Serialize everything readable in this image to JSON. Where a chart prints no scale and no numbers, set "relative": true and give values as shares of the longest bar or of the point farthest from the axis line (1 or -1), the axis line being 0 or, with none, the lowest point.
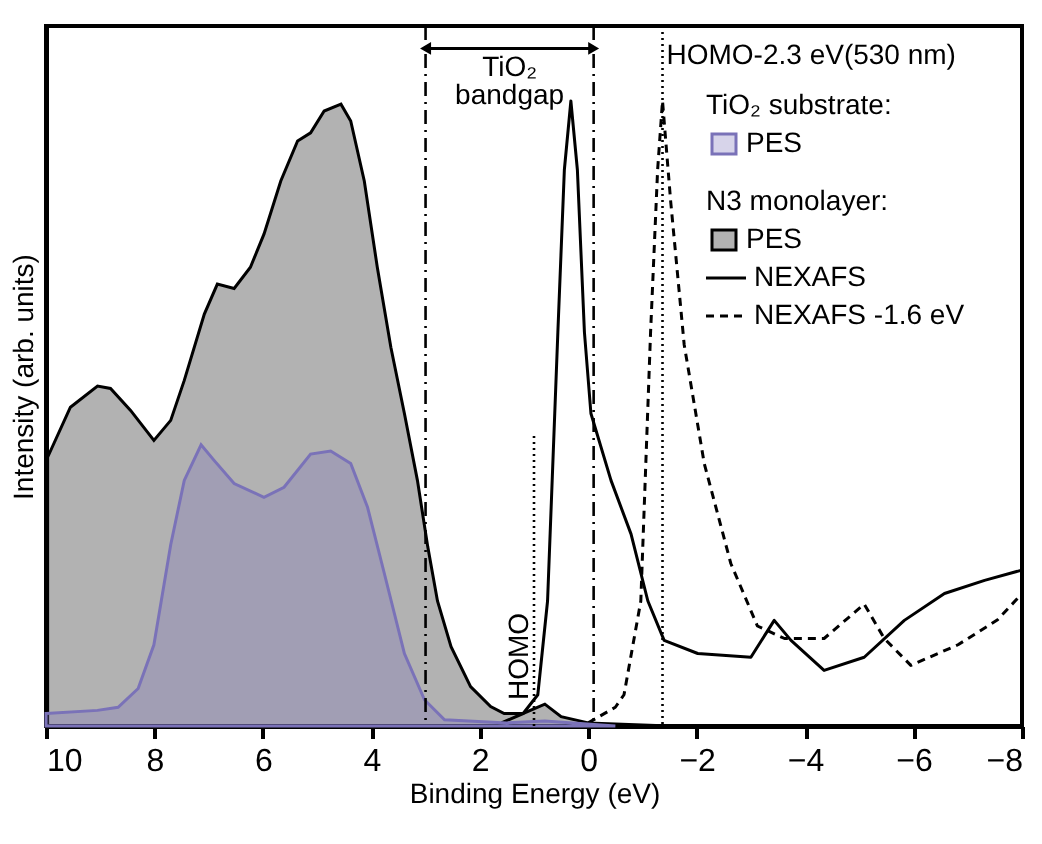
{
  "chart_data": {
    "type": "area",
    "relative": true,
    "xlabel": "Binding Energy (eV)",
    "ylabel": "Intensity (arb. units)",
    "xlim": [
      10,
      -8
    ],
    "xticks": [
      10,
      8,
      6,
      4,
      2,
      0,
      -2,
      -4,
      -6,
      -8
    ],
    "grid": false,
    "legend": "top right",
    "annotations": [
      "TiO₂ bandgap",
      "TiO₂ substrate:",
      "N3 monolayer:"
    ],
    "ref_lines": [
      {
        "axis": "x",
        "value": 3.0,
        "label": null,
        "line_style": "dashdot"
      },
      {
        "axis": "x",
        "value": -0.1,
        "label": null,
        "line_style": "dashdot"
      },
      {
        "axis": "x",
        "value": 1.0,
        "label": "HOMO",
        "line_style": "dotted"
      },
      {
        "axis": "x",
        "value": -1.37,
        "label": "HOMO-2.3 eV(530 nm)",
        "line_style": "dotted"
      }
    ],
    "series": [
      {
        "name": "PES",
        "color": "#7a72b8",
        "x": [
          10,
          9.05,
          8.67,
          8.3,
          8.01,
          7.7,
          7.45,
          7.14,
          6.9,
          6.53,
          5.98,
          5.61,
          5.12,
          4.75,
          4.38,
          4.07,
          3.76,
          3.39,
          3.02,
          2.65,
          1.5,
          0.8,
          -0.5
        ],
        "values": [
          0.02,
          0.025,
          0.03,
          0.06,
          0.13,
          0.29,
          0.393,
          0.45,
          0.425,
          0.388,
          0.366,
          0.382,
          0.435,
          0.44,
          0.42,
          0.35,
          0.244,
          0.116,
          0.042,
          0.01,
          0.005,
          0.008,
          0
        ]
      },
      {
        "name": "PES",
        "color": "#000000",
        "x": [
          9.97,
          9.55,
          9.05,
          8.81,
          8.44,
          8.01,
          7.7,
          7.45,
          7.08,
          6.84,
          6.53,
          6.23,
          5.98,
          5.67,
          5.36,
          5.12,
          4.87,
          4.56,
          4.38,
          4.13,
          3.89,
          3.64,
          3.39,
          3.15,
          2.96,
          2.78,
          2.53,
          2.17,
          1.8,
          1.55,
          1.2,
          0.8,
          0.5,
          0,
          -1.5
        ],
        "values": [
          0.43,
          0.51,
          0.544,
          0.54,
          0.505,
          0.457,
          0.489,
          0.553,
          0.659,
          0.707,
          0.7,
          0.734,
          0.787,
          0.872,
          0.936,
          0.949,
          0.984,
          0.995,
          0.968,
          0.872,
          0.734,
          0.606,
          0.5,
          0.393,
          0.287,
          0.2,
          0.127,
          0.063,
          0.031,
          0.02,
          0.02,
          0.035,
          0.015,
          0.005,
          0
        ]
      },
      {
        "name": "NEXAFS",
        "type": "line",
        "line_style": "solid",
        "color": "#000000",
        "x": [
          1.6,
          1.2,
          0.93,
          0.75,
          0.56,
          0.44,
          0.32,
          0.2,
          0.07,
          -0.05,
          -0.42,
          -0.79,
          -1.1,
          -1.4,
          -2.02,
          -3.0,
          -3.43,
          -3.74,
          -4.35,
          -5.09,
          -5.83,
          -6.57,
          -7.31,
          -7.98
        ],
        "values": [
          0.005,
          0.02,
          0.05,
          0.2,
          0.63,
          0.89,
          1.0,
          0.89,
          0.63,
          0.5,
          0.393,
          0.307,
          0.2,
          0.137,
          0.116,
          0.11,
          0.169,
          0.137,
          0.089,
          0.11,
          0.169,
          0.212,
          0.233,
          0.249
        ]
      },
      {
        "name": "NEXAFS -1.6 eV",
        "type": "line",
        "line_style": "dashed",
        "color": "#000000",
        "x": [
          0.0,
          -0.5,
          -0.66,
          -0.97,
          -1.15,
          -1.28,
          -1.37,
          -1.52,
          -1.77,
          -2.14,
          -2.63,
          -3.12,
          -3.62,
          -4.35,
          -5.09,
          -5.46,
          -5.95,
          -6.82,
          -7.55,
          -7.98
        ],
        "values": [
          0.005,
          0.03,
          0.05,
          0.2,
          0.63,
          0.89,
          1.0,
          0.84,
          0.61,
          0.42,
          0.26,
          0.16,
          0.14,
          0.14,
          0.195,
          0.14,
          0.097,
          0.13,
          0.17,
          0.21
        ]
      }
    ]
  }
}
